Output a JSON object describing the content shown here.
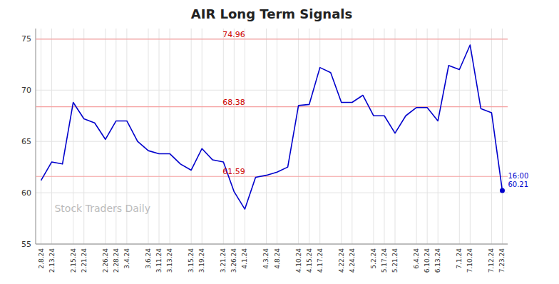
{
  "chart_data": {
    "type": "line",
    "title": "AIR Long Term Signals",
    "watermark": "Stock Traders Daily",
    "categories": [
      "2.8.24",
      "2.13.24",
      null,
      "2.15.24",
      "2.21.24",
      null,
      "2.26.24",
      "2.28.24",
      "3.4.24",
      null,
      "3.6.24",
      "3.11.24",
      "3.13.24",
      null,
      "3.15.24",
      "3.19.24",
      null,
      "3.21.24",
      "3.26.24",
      "4.1.24",
      null,
      "4.3.24",
      "4.8.24",
      null,
      "4.10.24",
      "4.15.24",
      "4.17.24",
      null,
      "4.22.24",
      "4.24.24",
      null,
      "5.2.24",
      "5.17.24",
      "5.21.24",
      null,
      "6.4.24",
      "6.10.24",
      "6.13.24",
      null,
      "7.1.24",
      "7.10.24",
      null,
      "7.12.24",
      "7.23.24"
    ],
    "values": [
      61.2,
      63.0,
      62.8,
      68.8,
      67.2,
      66.8,
      65.2,
      67.0,
      67.0,
      65.0,
      64.1,
      63.8,
      63.8,
      62.8,
      62.2,
      64.3,
      63.2,
      63.0,
      60.1,
      58.4,
      61.5,
      61.7,
      62.0,
      62.5,
      68.5,
      68.6,
      72.2,
      71.7,
      68.8,
      68.8,
      69.5,
      67.5,
      67.5,
      65.8,
      67.5,
      68.3,
      68.3,
      67.0,
      72.4,
      72.0,
      74.4,
      68.2,
      67.8,
      60.21
    ],
    "color": "#0000cc",
    "reference_lines": [
      {
        "value": 74.96,
        "label": "74.96",
        "color": "#f5a0a0",
        "label_color": "#cc0000"
      },
      {
        "value": 68.38,
        "label": "68.38",
        "color": "#f5a0a0",
        "label_color": "#cc0000"
      },
      {
        "value": 61.59,
        "label": "61.59",
        "color": "#f5a0a0",
        "label_color": "#cc0000"
      }
    ],
    "annotations": [
      {
        "text": "16:00\n60.21"
      }
    ],
    "ylim": [
      55,
      76
    ],
    "yticks": [
      55,
      60,
      65,
      70,
      75
    ],
    "grid": true
  }
}
